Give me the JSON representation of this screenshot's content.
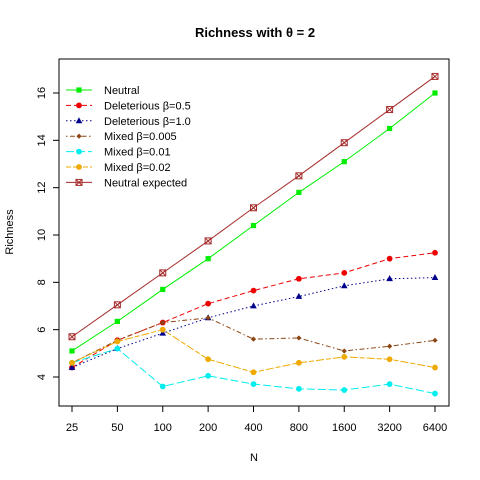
{
  "chart_data": {
    "type": "line",
    "title": "Richness with θ = 2",
    "xlabel": "N",
    "ylabel": "Richness",
    "categories": [
      "25",
      "50",
      "100",
      "200",
      "400",
      "800",
      "1600",
      "3200",
      "6400"
    ],
    "ylim": [
      3.0,
      17.0
    ],
    "yticks": [
      4,
      6,
      8,
      10,
      12,
      14,
      16
    ],
    "grid": false,
    "legend_position": "top-left",
    "series": [
      {
        "name": "Neutral",
        "color": "#00ee00",
        "dash": "solid",
        "marker": "square",
        "values": [
          5.1,
          6.35,
          7.7,
          9.0,
          10.4,
          11.8,
          13.1,
          14.5,
          16.0
        ]
      },
      {
        "name": "Deleterious β=0.5",
        "color": "#ee0000",
        "dash": "dash",
        "marker": "circle",
        "values": [
          4.4,
          5.55,
          6.3,
          7.1,
          7.65,
          8.15,
          8.4,
          9.0,
          9.25
        ]
      },
      {
        "name": "Deleterious β=1.0",
        "color": "#00008b",
        "dash": "dot",
        "marker": "triangle",
        "values": [
          4.4,
          5.2,
          5.85,
          6.5,
          7.0,
          7.4,
          7.85,
          8.15,
          8.2
        ]
      },
      {
        "name": "Mixed β=0.005",
        "color": "#8b4513",
        "dash": "dotdash",
        "marker": "diamond",
        "values": [
          4.6,
          5.55,
          6.3,
          6.5,
          5.6,
          5.65,
          5.1,
          5.3,
          5.55
        ]
      },
      {
        "name": "Mixed β=0.01",
        "color": "#00eeee",
        "dash": "longdash",
        "marker": "circle",
        "values": [
          4.6,
          5.2,
          3.6,
          4.05,
          3.7,
          3.5,
          3.45,
          3.7,
          3.3
        ]
      },
      {
        "name": "Mixed β=0.02",
        "color": "#eeaa00",
        "dash": "twodash",
        "marker": "circle",
        "values": [
          4.6,
          5.5,
          6.0,
          4.75,
          4.2,
          4.6,
          4.85,
          4.75,
          4.4
        ]
      },
      {
        "name": "Neutral expected",
        "color": "#a52a2a",
        "dash": "solid",
        "marker": "boxx",
        "values": [
          5.7,
          7.05,
          8.4,
          9.75,
          11.15,
          12.5,
          13.9,
          15.3,
          16.7
        ]
      }
    ]
  }
}
